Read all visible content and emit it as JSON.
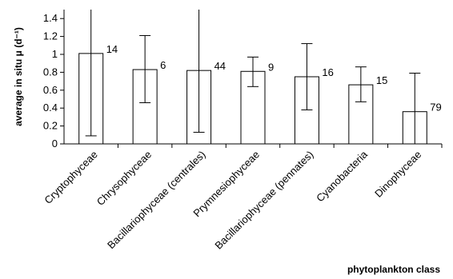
{
  "chart_data": {
    "type": "bar",
    "title": "",
    "ylabel": "average in situ μ (d⁻¹)",
    "xlabel": "phytoplankton class",
    "ylim": [
      0,
      1.5
    ],
    "yticks": [
      "0",
      "0.2",
      "0.4",
      "0.6",
      "0.8",
      "1",
      "1.2",
      "1.4"
    ],
    "categories": [
      "Cryptophyceae",
      "Chrysophyceae",
      "Bacillariophyceae (centrales)",
      "Prymnesiophyceae",
      "Bacillariophyceae (pennates)",
      "Cyanobacteria",
      "Dinophyceae"
    ],
    "values": [
      1.01,
      0.83,
      0.82,
      0.81,
      0.75,
      0.66,
      0.36
    ],
    "error_low": [
      0.09,
      0.46,
      0.13,
      0.64,
      0.38,
      0.47,
      0.0
    ],
    "error_high": [
      1.5,
      1.21,
      1.5,
      0.97,
      1.12,
      0.86,
      0.79
    ],
    "annotations": [
      "14",
      "6",
      "44",
      "9",
      "16",
      "15",
      "79"
    ],
    "grid": false,
    "legend": "none",
    "bar_color": "#ffffff",
    "edge_color": "#000000"
  }
}
